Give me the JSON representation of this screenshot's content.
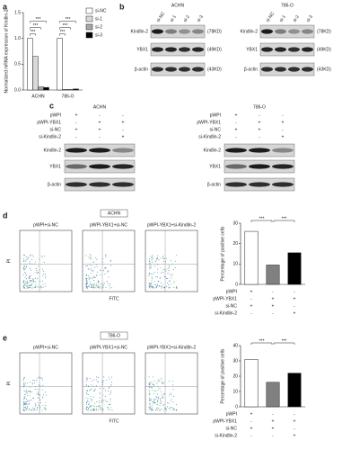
{
  "panel_labels": [
    "a",
    "b",
    "c",
    "d",
    "e"
  ],
  "chart_data": [
    {
      "type": "bar",
      "y_label": "Normalized mRNA expression of Kindlin-2",
      "categories": [
        "ACHN",
        "786-O"
      ],
      "series": [
        {
          "name": "si-NC",
          "color": "#ffffff",
          "values": [
            1.0,
            1.0
          ]
        },
        {
          "name": "si-1",
          "color": "#d9d9d9",
          "values": [
            0.65,
            0.01
          ]
        },
        {
          "name": "si-2",
          "color": "#a6a6a6",
          "values": [
            0.06,
            0.01
          ]
        },
        {
          "name": "si-3",
          "color": "#000000",
          "values": [
            0.05,
            0.02
          ]
        }
      ],
      "ylim": [
        0,
        1.5
      ],
      "yticks": [
        {
          "value": 0,
          "label": "0.0"
        },
        0.5,
        {
          "value": 1,
          "label": "1.0"
        },
        1.5
      ],
      "annotations": [
        "***",
        "***",
        "***",
        "***",
        "***",
        "***"
      ]
    },
    {
      "type": "bar",
      "y_label": "Percentage of positive cells",
      "categories": [
        null,
        null,
        null
      ],
      "values": [
        26,
        9.5,
        15.5
      ],
      "colors": [
        "#ffffff",
        "#808080",
        "#000000"
      ],
      "ylim": [
        0,
        30
      ],
      "yticks": [
        0,
        10,
        20,
        30
      ],
      "annotations": [
        "***",
        "***"
      ],
      "conditions": [
        {
          "label": "pWPI",
          "signs": [
            "+",
            "-",
            "-"
          ]
        },
        {
          "label": "pWPI-YBX1",
          "signs": [
            "-",
            "+",
            "+"
          ]
        },
        {
          "label": "si-NC",
          "signs": [
            "+",
            "+",
            "-"
          ]
        },
        {
          "label": "si-Kindlin-2",
          "signs": [
            "-",
            "-",
            "+"
          ]
        }
      ]
    },
    {
      "type": "bar",
      "y_label": "Percentage of positive cells",
      "categories": [
        null,
        null,
        null
      ],
      "values": [
        31,
        16,
        22
      ],
      "colors": [
        "#ffffff",
        "#808080",
        "#000000"
      ],
      "ylim": [
        0,
        40
      ],
      "yticks": [
        0,
        10,
        20,
        30,
        40
      ],
      "annotations": [
        "***",
        "***"
      ],
      "conditions": [
        {
          "label": "pWPI",
          "signs": [
            "+",
            "-",
            "-"
          ]
        },
        {
          "label": "pWPI-YBX1",
          "signs": [
            "-",
            "+",
            "+"
          ]
        },
        {
          "label": "si-NC",
          "signs": [
            "+",
            "+",
            "-"
          ]
        },
        {
          "label": "si-Kindlin-2",
          "signs": [
            "-",
            "-",
            "+"
          ]
        }
      ]
    }
  ],
  "blot_b": {
    "panels": [
      {
        "title": "ACHN",
        "lanes": [
          "si-NC",
          "si-1",
          "si-2",
          "si-3"
        ],
        "bands": [
          {
            "name": "Kindlin-2",
            "size": "(78KD)"
          },
          {
            "name": "YBX1",
            "size": "(49KD)"
          },
          {
            "name": "β-actin",
            "size": "(43KD)"
          }
        ]
      },
      {
        "title": "786-O",
        "lanes": [
          "si-NC",
          "si-1",
          "si-2",
          "si-3"
        ],
        "bands": [
          {
            "name": "Kindlin-2",
            "size": "(78KD)"
          },
          {
            "name": "YBX1",
            "size": "(49KD)"
          },
          {
            "name": "β-actin",
            "size": "(43KD)"
          }
        ]
      }
    ]
  },
  "blot_c": {
    "conditions": [
      {
        "label": "pWPI",
        "signs": [
          "+",
          "-",
          "-"
        ]
      },
      {
        "label": "pWPI-YBX1",
        "signs": [
          "-",
          "+",
          "+"
        ]
      },
      {
        "label": "si-NC",
        "signs": [
          "+",
          "+",
          "-"
        ]
      },
      {
        "label": "si-Kindlin-2",
        "signs": [
          "-",
          "-",
          "+"
        ]
      }
    ],
    "panels": [
      {
        "title": "ACHN",
        "bands": [
          "Kindlin-2",
          "YBX1",
          "β-actin"
        ]
      },
      {
        "title": "786-O",
        "bands": [
          "Kindlin-2",
          "YBX1",
          "β-actin"
        ]
      }
    ]
  },
  "flow_d": {
    "title": "ACHN",
    "plots": [
      "pWPI+si-NC",
      "pWPI-YBX1+si-NC",
      "pWPI-YBX1+si-Kindlin-2"
    ],
    "y_label": "PI",
    "x_label": "FITC"
  },
  "flow_e": {
    "title": "786-O",
    "plots": [
      "pWPI+si-NC",
      "pWPI-YBX1+si-NC",
      "pWPI-YBX1+si-Kindlin-2"
    ],
    "y_label": "PI",
    "x_label": "FITC"
  }
}
